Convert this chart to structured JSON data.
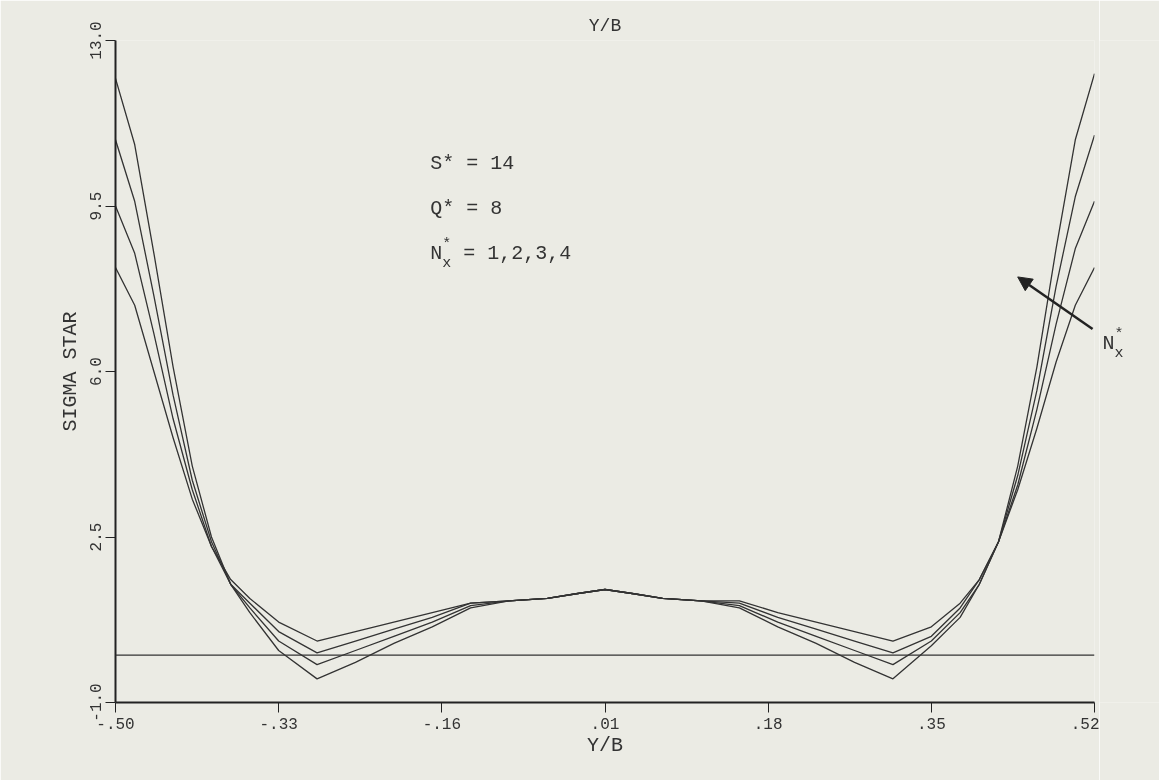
{
  "chart_data": {
    "type": "line",
    "title": "Y/B",
    "xlabel": "Y/B",
    "ylabel": "SIGMA STAR",
    "x": [
      -0.5,
      -0.48,
      -0.46,
      -0.44,
      -0.42,
      -0.4,
      -0.38,
      -0.36,
      -0.33,
      -0.29,
      -0.25,
      -0.21,
      -0.17,
      -0.13,
      -0.09,
      -0.05,
      -0.02,
      0.01,
      0.04,
      0.07,
      0.11,
      0.15,
      0.19,
      0.23,
      0.27,
      0.31,
      0.35,
      0.38,
      0.4,
      0.42,
      0.44,
      0.46,
      0.48,
      0.5,
      0.52
    ],
    "series": [
      {
        "color": "#333333",
        "values": [
          8.2,
          7.4,
          6.0,
          4.6,
          3.3,
          2.3,
          1.6,
          1.2,
          0.7,
          0.3,
          0.5,
          0.7,
          0.9,
          1.1,
          1.15,
          1.2,
          1.3,
          1.39,
          1.3,
          1.2,
          1.15,
          1.15,
          0.9,
          0.7,
          0.5,
          0.3,
          0.6,
          1.1,
          1.6,
          2.4,
          3.5,
          4.8,
          6.2,
          7.4,
          8.2
        ]
      },
      {
        "color": "#333333",
        "values": [
          9.5,
          8.5,
          6.8,
          5.0,
          3.5,
          2.3,
          1.5,
          1.1,
          0.5,
          0.05,
          0.3,
          0.55,
          0.8,
          1.1,
          1.15,
          1.2,
          1.3,
          1.39,
          1.3,
          1.2,
          1.15,
          1.1,
          0.8,
          0.55,
          0.3,
          0.05,
          0.4,
          1.0,
          1.6,
          2.4,
          3.6,
          5.2,
          7.0,
          8.6,
          9.6
        ]
      },
      {
        "color": "#333333",
        "values": [
          10.9,
          9.6,
          7.6,
          5.5,
          3.7,
          2.4,
          1.5,
          1.0,
          0.3,
          -0.2,
          0.1,
          0.4,
          0.7,
          1.05,
          1.15,
          1.2,
          1.3,
          1.39,
          1.3,
          1.2,
          1.15,
          1.05,
          0.7,
          0.4,
          0.1,
          -0.2,
          0.3,
          0.9,
          1.5,
          2.4,
          3.8,
          5.6,
          7.8,
          9.7,
          11.0
        ]
      },
      {
        "color": "#333333",
        "values": [
          12.2,
          10.8,
          8.5,
          6.1,
          4.0,
          2.5,
          1.5,
          0.9,
          0.1,
          -0.5,
          -0.15,
          0.25,
          0.6,
          1.0,
          1.15,
          1.2,
          1.3,
          1.39,
          1.3,
          1.2,
          1.15,
          1.0,
          0.6,
          0.25,
          -0.15,
          -0.5,
          0.2,
          0.8,
          1.5,
          2.4,
          4.0,
          6.1,
          8.6,
          10.9,
          12.3
        ]
      }
    ],
    "xlim": [
      -0.5,
      0.52
    ],
    "xticks": [
      {
        "value": -0.5,
        "label": "-.50"
      },
      {
        "value": -0.33,
        "label": "-.33"
      },
      {
        "value": -0.16,
        "label": "-.16"
      },
      {
        "value": 0.01,
        "label": ".01"
      },
      {
        "value": 0.18,
        "label": ".18"
      },
      {
        "value": 0.35,
        "label": ".35"
      },
      {
        "value": 0.52,
        "label": ".52"
      }
    ],
    "ylim": [
      -1.0,
      13.0
    ],
    "yticks": [
      {
        "value": -1.0,
        "label": "-1.0"
      },
      2.5,
      {
        "value": 6.0,
        "label": "6.0"
      },
      9.5,
      {
        "value": 13.0,
        "label": "13.0"
      }
    ],
    "ref_lines": [
      {
        "axis": "y",
        "value": 0.0,
        "color": "#333333"
      }
    ],
    "annotations": [
      "S* = 14",
      "Q* = 8",
      "N$^{*}$$_{x}$ = 1,2,3,4",
      "N$_{x}$$^{*}$"
    ],
    "grid": false,
    "marker": "none",
    "line_style": "solid"
  }
}
